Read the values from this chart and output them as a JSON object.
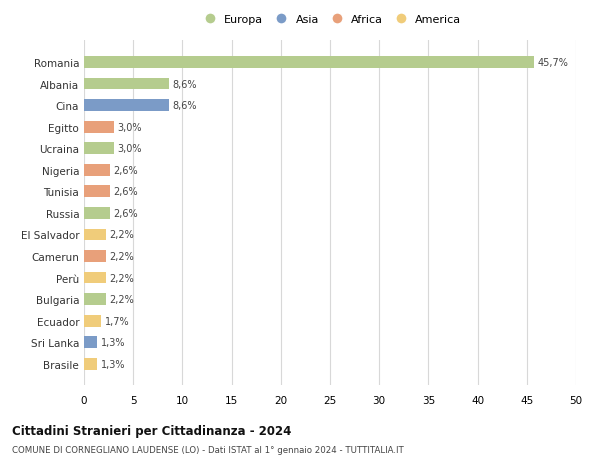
{
  "categories": [
    "Romania",
    "Albania",
    "Cina",
    "Egitto",
    "Ucraina",
    "Nigeria",
    "Tunisia",
    "Russia",
    "El Salvador",
    "Camerun",
    "Perù",
    "Bulgaria",
    "Ecuador",
    "Sri Lanka",
    "Brasile"
  ],
  "values": [
    45.7,
    8.6,
    8.6,
    3.0,
    3.0,
    2.6,
    2.6,
    2.6,
    2.2,
    2.2,
    2.2,
    2.2,
    1.7,
    1.3,
    1.3
  ],
  "labels": [
    "45,7%",
    "8,6%",
    "8,6%",
    "3,0%",
    "3,0%",
    "2,6%",
    "2,6%",
    "2,6%",
    "2,2%",
    "2,2%",
    "2,2%",
    "2,2%",
    "1,7%",
    "1,3%",
    "1,3%"
  ],
  "continents": [
    "Europa",
    "Europa",
    "Asia",
    "Africa",
    "Europa",
    "Africa",
    "Africa",
    "Europa",
    "America",
    "Africa",
    "America",
    "Europa",
    "America",
    "Asia",
    "America"
  ],
  "colors": {
    "Europa": "#b5cc8e",
    "Asia": "#7b9bc7",
    "Africa": "#e8a07a",
    "America": "#f0cc7a"
  },
  "legend_order": [
    "Europa",
    "Asia",
    "Africa",
    "America"
  ],
  "title": "Cittadini Stranieri per Cittadinanza - 2024",
  "subtitle": "COMUNE DI CORNEGLIANO LAUDENSE (LO) - Dati ISTAT al 1° gennaio 2024 - TUTTITALIA.IT",
  "xlim": [
    0,
    50
  ],
  "xticks": [
    0,
    5,
    10,
    15,
    20,
    25,
    30,
    35,
    40,
    45,
    50
  ],
  "background_color": "#ffffff",
  "grid_color": "#d8d8d8"
}
